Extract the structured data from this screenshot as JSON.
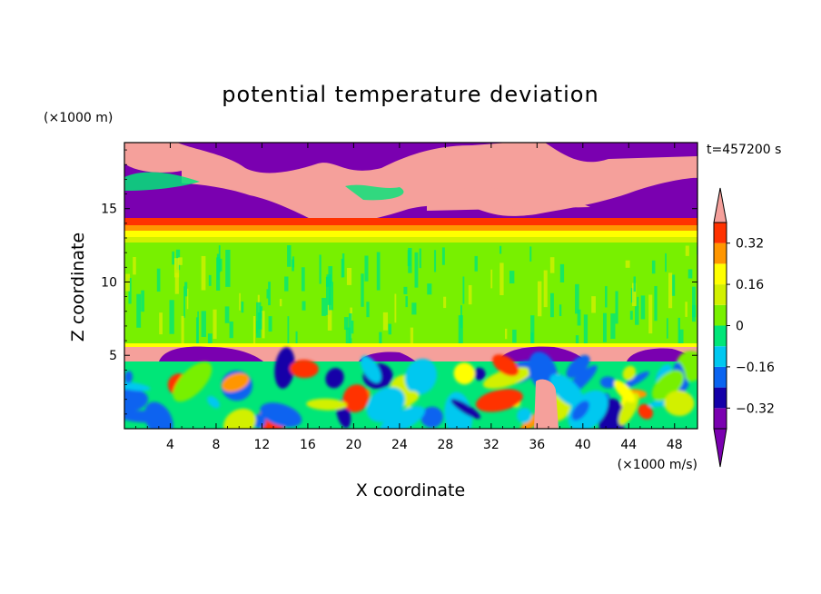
{
  "chart_data": {
    "type": "heatmap",
    "title": "potential temperature deviation",
    "xlabel": "X coordinate",
    "ylabel": "Z coordinate",
    "x_unit": "(×1000 m/s)",
    "y_unit": "(×1000 m)",
    "time_label": "t=457200 s",
    "xlim": [
      0,
      50
    ],
    "ylim": [
      0,
      19.5
    ],
    "x_ticks": [
      4,
      8,
      12,
      16,
      20,
      24,
      28,
      32,
      36,
      40,
      44,
      48
    ],
    "y_ticks": [
      5,
      10,
      15
    ],
    "colorbar": {
      "levels": [
        -0.4,
        -0.32,
        -0.24,
        -0.16,
        -0.08,
        0,
        0.08,
        0.16,
        0.24,
        0.32,
        0.4
      ],
      "tick_values": [
        -0.32,
        -0.16,
        0,
        0.16,
        0.32
      ],
      "tick_labels": [
        "−0.32",
        "−0.16",
        "0",
        "0.16",
        "0.32"
      ],
      "colors": [
        "#7a00b0",
        "#1400a8",
        "#0a64f0",
        "#00c8f0",
        "#00e678",
        "#78f000",
        "#d2f000",
        "#ffff00",
        "#ff9600",
        "#ff3200",
        "#f5a09b",
        "#ff1e1e"
      ]
    },
    "layers": [
      {
        "z": [
          0,
          4.9
        ],
        "value": "mixed turbulent field (-0.4 to 0.4)"
      },
      {
        "z": [
          4.9,
          6.0
        ],
        "value": 0.4
      },
      {
        "z": [
          6.0,
          13.0
        ],
        "value": 0.02
      },
      {
        "z": [
          13.0,
          14.5
        ],
        "value": 0.3
      },
      {
        "z": [
          14.5,
          19.5
        ],
        "value": "mixed high/low (-0.4, 0.4)"
      }
    ]
  }
}
